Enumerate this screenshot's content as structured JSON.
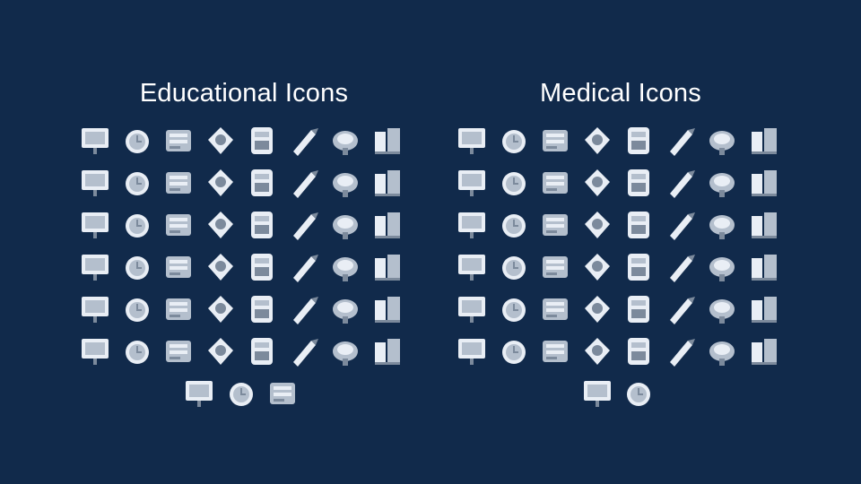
{
  "slide": {
    "background": "#112a4b",
    "icon_light": "#e9eef5",
    "icon_mid": "#b4bfcd",
    "icon_dark": "#7c8a9c"
  },
  "educational": {
    "title": "Educational Icons",
    "icons": [
      "presentation-board-icon",
      "alarm-clock-icon",
      "speech-bubble-icon",
      "chalkboard-icon",
      "eraser-icon",
      "video-player-icon",
      "pencil-ruler-icon",
      "open-book-icon",
      "highlighter-icon",
      "atom-icon",
      "closed-book-icon",
      "medal-icon",
      "laptop-icon",
      "magnet-icon",
      "book-stack-icon",
      "column-icon",
      "scales-icon",
      "school-bus-icon",
      "calendar-icon",
      "compass-icon",
      "school-building-icon",
      "glasses-icon",
      "graduation-cap-icon",
      "music-note-icon",
      "apple-icon",
      "pencil-sharpener-icon",
      "test-tube-icon",
      "mouse-icon",
      "pen-icon",
      "light-bulb-icon",
      "hand-bell-icon",
      "ruler-icon",
      "flask-icon",
      "checklist-icon",
      "desk-lamp-icon",
      "football-icon",
      "briefcase-icon",
      "globe-icon",
      "projector-icon",
      "microscope-icon",
      "hourglass-trophy-icon",
      "telescope-icon",
      "locker-icon",
      "piano-keys-icon",
      "school-bell-icon",
      "fountain-pen-icon",
      "scroll-icon",
      "magnifier-icon",
      "paint-palette-icon",
      "hourglass-icon",
      "notebook-icon"
    ]
  },
  "medical": {
    "title": "Medical Icons",
    "icons": [
      "surgical-scissors-icon",
      "bone-icon",
      "kidneys-icon",
      "lungs-icon",
      "bandage-cross-icon",
      "broken-bone-icon",
      "syringe-bulb-icon",
      "sperm-icon",
      "eye-icon",
      "helicopter-icon",
      "liver-icon",
      "medicine-bottle-icon",
      "heart-monitor-icon",
      "hospital-bed-icon",
      "skin-layer-icon",
      "heartbeat-icon",
      "ambulance-icon",
      "syringe-icon",
      "hospital-icon",
      "wheelchair-icon",
      "pills-icon",
      "first-aid-kit-icon",
      "scalpel-icon",
      "stethoscope-icon",
      "blood-tube-icon",
      "virus-icon",
      "iv-bag-icon",
      "head-profile-icon",
      "weighing-scale-icon",
      "tooth-icon",
      "thyroid-icon",
      "lab-microscope-icon",
      "thermometer-icon",
      "blood-pressure-icon",
      "medicine-box-icon",
      "brain-icon",
      "bacteria-icon",
      "nose-icon",
      "crutches-icon",
      "medical-chart-icon",
      "pill-blister-icon",
      "glucometer-icon",
      "ear-icon",
      "stomach-icon",
      "doctor-icon",
      "nurse-icon",
      "chemistry-flask-icon",
      "intestines-icon",
      "dna-icon",
      "drip-stand-icon"
    ]
  }
}
